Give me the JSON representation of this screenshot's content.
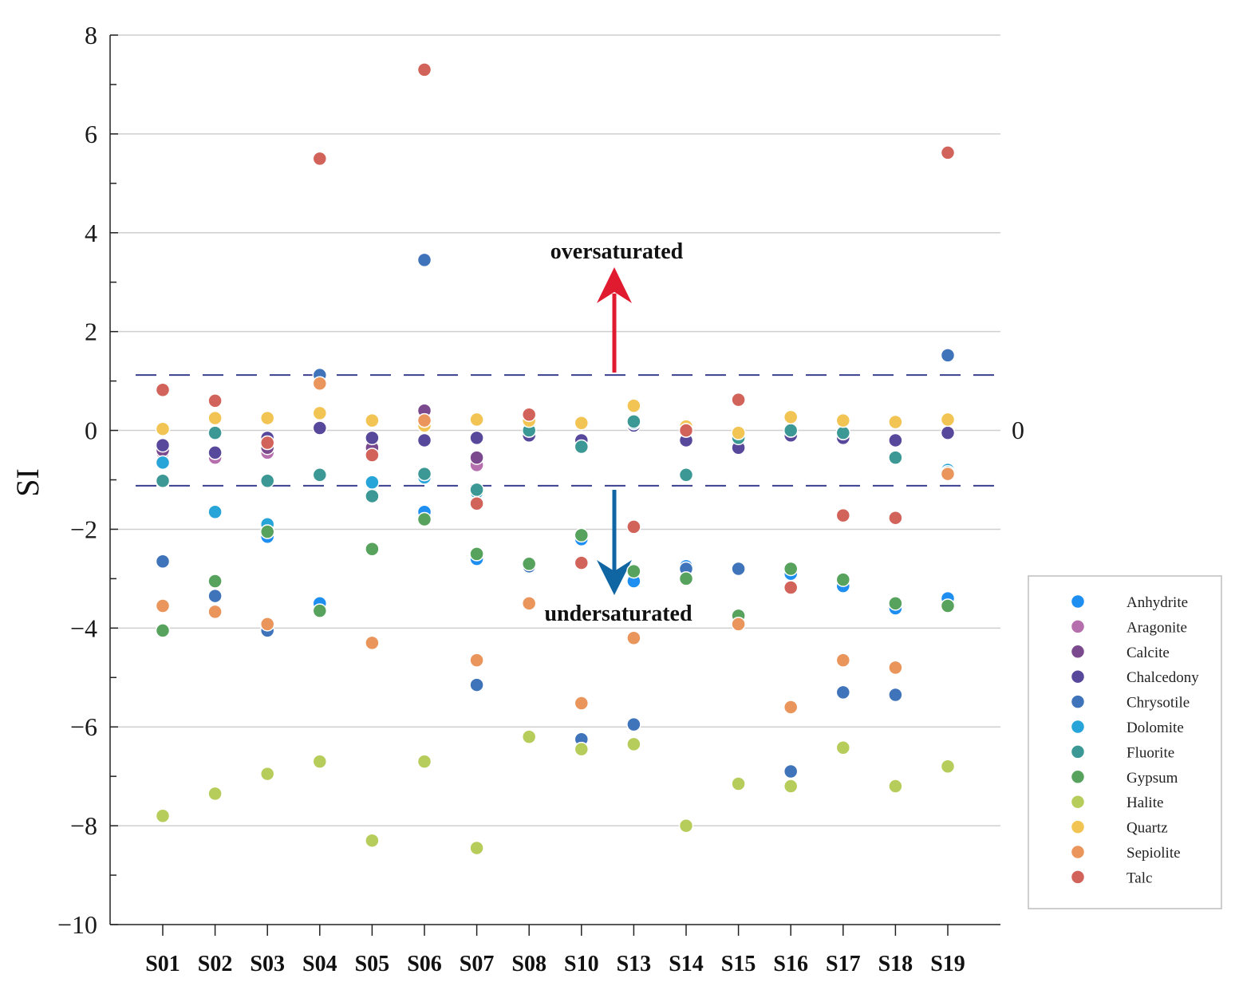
{
  "chart_data": {
    "type": "scatter",
    "ylabel": "SI",
    "ylim": [
      -10,
      8
    ],
    "yticks": [
      -10,
      -8,
      -6,
      -4,
      -2,
      0,
      2,
      4,
      6,
      8
    ],
    "grid": "horizontal",
    "legend_position": "bottom-right",
    "categories": [
      "S01",
      "S02",
      "S03",
      "S04",
      "S05",
      "S06",
      "S07",
      "S08",
      "S10",
      "S13",
      "S14",
      "S15",
      "S16",
      "S17",
      "S18",
      "S19"
    ],
    "reference_lines": [
      1.12,
      -1.12
    ],
    "right_label": "0",
    "annotations": [
      {
        "text": "oversaturated",
        "direction": "up"
      },
      {
        "text": "undersaturated",
        "direction": "down"
      }
    ],
    "series": [
      {
        "name": "Anhydrite",
        "color": "#1f8ef1",
        "values": [
          -0.65,
          -1.65,
          -2.15,
          -3.5,
          -1.05,
          -1.65,
          -2.6,
          -2.75,
          -2.2,
          -3.05,
          -2.75,
          -3.8,
          -2.9,
          -3.15,
          -3.6,
          -3.4
        ]
      },
      {
        "name": "Aragonite",
        "color": "#b56fad",
        "values": [
          -0.45,
          -0.55,
          -0.45,
          0.05,
          -0.4,
          -0.2,
          -0.7,
          0.1,
          -0.25,
          0.1,
          -0.2,
          -0.35,
          -0.1,
          -0.15,
          -0.2,
          -0.8
        ]
      },
      {
        "name": "Calcite",
        "color": "#7b4a8e",
        "values": [
          -0.4,
          -0.45,
          -0.35,
          0.05,
          -0.35,
          0.4,
          -0.55,
          0.15,
          -0.2,
          0.1,
          -0.2,
          -0.3,
          -0.1,
          -0.15,
          -0.2,
          -0.05
        ]
      },
      {
        "name": "Chalcedony",
        "color": "#58489b",
        "values": [
          -0.3,
          -0.45,
          -0.15,
          0.05,
          -0.15,
          -0.2,
          -0.15,
          -0.1,
          -0.2,
          0.1,
          -0.2,
          -0.35,
          -0.1,
          -0.15,
          -0.2,
          -0.05
        ]
      },
      {
        "name": "Chrysotile",
        "color": "#3f74bb",
        "values": [
          -2.65,
          -3.35,
          -4.05,
          1.12,
          -1.3,
          3.45,
          -5.15,
          -2.75,
          -6.25,
          -5.95,
          -2.8,
          -2.8,
          -6.9,
          -5.3,
          -5.35,
          1.52
        ]
      },
      {
        "name": "Dolomite",
        "color": "#27a4d8",
        "values": [
          -0.65,
          -1.65,
          -1.9,
          -0.9,
          -1.05,
          -0.95,
          -1.25,
          0.0,
          -0.35,
          0.15,
          -0.9,
          -0.1,
          0.0,
          -0.05,
          -0.55,
          -0.8
        ]
      },
      {
        "name": "Fluorite",
        "color": "#3c9894",
        "values": [
          -1.02,
          -0.05,
          -1.02,
          -0.9,
          -1.33,
          -0.88,
          -1.2,
          0.0,
          -0.33,
          0.18,
          -0.9,
          -0.15,
          0.0,
          -0.05,
          -0.55,
          -0.85
        ]
      },
      {
        "name": "Gypsum",
        "color": "#57a25d",
        "values": [
          -4.05,
          -3.05,
          -2.05,
          -3.65,
          -2.4,
          -1.8,
          -2.5,
          -2.7,
          -2.12,
          -2.85,
          -3.0,
          -3.75,
          -2.8,
          -3.02,
          -3.5,
          -3.55
        ]
      },
      {
        "name": "Halite",
        "color": "#b6cd5b",
        "values": [
          -7.8,
          -7.35,
          -6.95,
          -6.7,
          -8.3,
          -6.7,
          -8.45,
          -6.2,
          -6.45,
          -6.35,
          -8.0,
          -7.15,
          -7.2,
          -6.42,
          -7.2,
          -6.8
        ]
      },
      {
        "name": "Quartz",
        "color": "#f2c453",
        "values": [
          0.03,
          0.25,
          0.25,
          0.35,
          0.2,
          0.1,
          0.22,
          0.2,
          0.15,
          0.5,
          0.08,
          -0.05,
          0.27,
          0.2,
          0.17,
          0.22
        ]
      },
      {
        "name": "Sepiolite",
        "color": "#ea955b",
        "values": [
          -3.55,
          -3.67,
          -3.92,
          0.95,
          -4.3,
          0.2,
          -4.65,
          -3.5,
          -5.52,
          -4.2,
          0.0,
          -3.92,
          -5.6,
          -4.65,
          -4.8,
          -0.88
        ]
      },
      {
        "name": "Talc",
        "color": "#d2635a",
        "values": [
          0.82,
          0.6,
          -0.25,
          5.5,
          -0.5,
          7.3,
          -1.48,
          0.32,
          -2.68,
          -1.95,
          0.0,
          0.62,
          -3.18,
          -1.72,
          -1.77,
          5.62
        ]
      }
    ]
  }
}
